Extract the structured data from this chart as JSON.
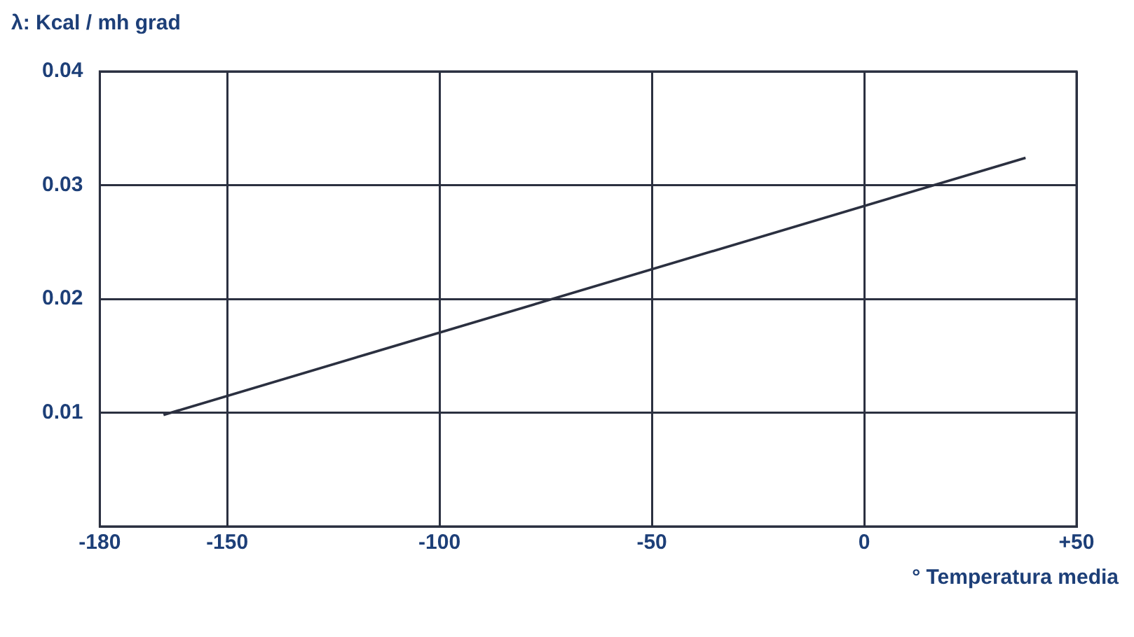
{
  "chart_data": {
    "type": "line",
    "xlabel": "° Temperatura media",
    "ylabel": "λ: Kcal / mh grad",
    "x": [
      -165,
      38
    ],
    "series": [
      {
        "color": "#2b3040",
        "values": [
          0.0098,
          0.0324
        ]
      }
    ],
    "xlim": [
      -180,
      50
    ],
    "xticks": [
      -180,
      -150,
      -100,
      -50,
      0,
      {
        "value": 50,
        "label": "+50"
      }
    ],
    "ylim": [
      0,
      0.04
    ],
    "yticks": [
      {
        "value": 0,
        "label": null
      },
      0.01,
      0.02,
      0.03,
      0.04
    ],
    "grid": true,
    "legend": false,
    "marker": "none",
    "line_style": "solid"
  }
}
